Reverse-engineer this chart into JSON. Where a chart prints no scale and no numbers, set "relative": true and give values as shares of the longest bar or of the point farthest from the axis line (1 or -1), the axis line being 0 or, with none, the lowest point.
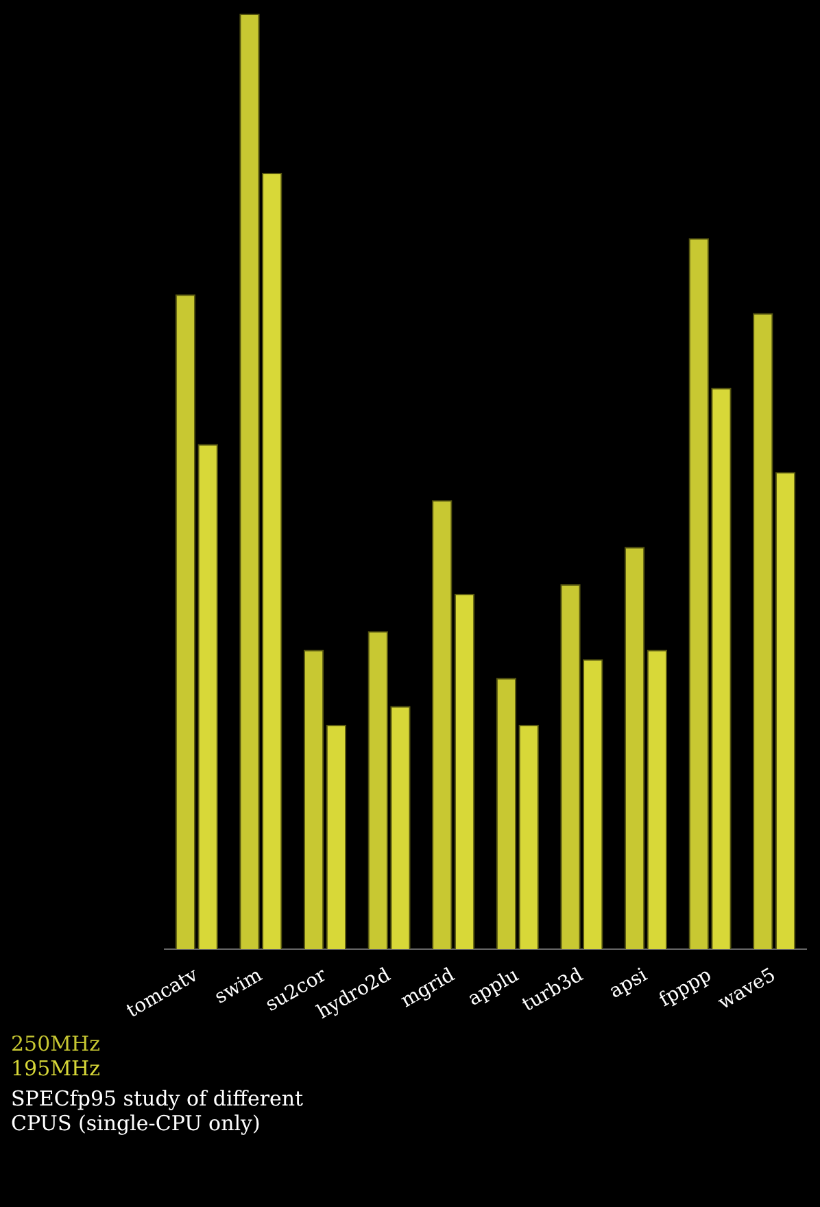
{
  "chart_data": {
    "type": "bar",
    "title": "SPECfp95 study of different CPUS (single-CPU only)",
    "relative": true,
    "categories": [
      "tomcatv",
      "swim",
      "su2cor",
      "hydro2d",
      "mgrid",
      "applu",
      "turb3d",
      "apsi",
      "fpppp",
      "wave5"
    ],
    "series": [
      {
        "name": "250MHz",
        "color": "#c8c832",
        "values": [
          0.7,
          1,
          0.32,
          0.34,
          0.48,
          0.29,
          0.39,
          0.43,
          0.76,
          0.68
        ]
      },
      {
        "name": "195MHz",
        "color": "#d8d838",
        "values": [
          0.54,
          0.83,
          0.24,
          0.26,
          0.38,
          0.24,
          0.31,
          0.32,
          0.6,
          0.51
        ]
      }
    ],
    "legend": "bottom left"
  }
}
